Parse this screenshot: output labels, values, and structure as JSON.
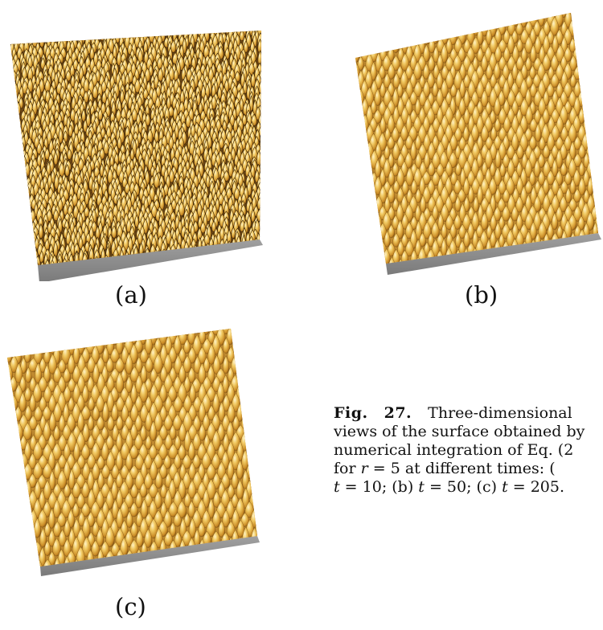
{
  "panels": [
    {
      "label": "(a)",
      "style": "rough"
    },
    {
      "label": "(b)",
      "style": "mounds"
    },
    {
      "label": "(c)",
      "style": "coarse"
    }
  ],
  "caption": {
    "fig_label": "Fig.",
    "fig_number": "27.",
    "text_line1": "Three-dimensional",
    "text_line2": "views of the surface obtained by",
    "text_line3": "numerical integration of Eq. (2",
    "text_line4_pre": "for",
    "var_r": "r",
    "text_line4_mid": " = 5 at different times: (",
    "text_line5_a": "t",
    "text_line5_b": " = 10; (b) ",
    "text_line5_c": "t",
    "text_line5_d": " = 50; (c) ",
    "text_line5_e": "t",
    "text_line5_f": " = 205."
  },
  "colors": {
    "surface_light": "#f3d27a",
    "surface_mid": "#d9a23a",
    "surface_dark": "#5a3a10",
    "base_gray": "#8f8f8f"
  }
}
